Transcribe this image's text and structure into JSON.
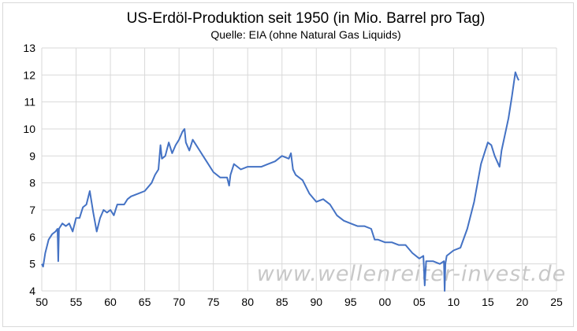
{
  "chart_data": {
    "type": "line",
    "title": "US-Erdöl-Produktion seit 1950 (in Mio. Barrel pro Tag)",
    "subtitle": "Quelle: EIA (ohne Natural Gas Liquids)",
    "watermark": "www.wellenreiter-invest.de",
    "xlabel": "",
    "ylabel": "",
    "xlim": [
      1950,
      2025
    ],
    "ylim": [
      4,
      13
    ],
    "grid": true,
    "x_ticks": [
      1950,
      1955,
      1960,
      1965,
      1970,
      1975,
      1980,
      1985,
      1990,
      1995,
      2000,
      2005,
      2010,
      2015,
      2020,
      2025
    ],
    "x_tick_labels": [
      "50",
      "55",
      "60",
      "65",
      "70",
      "75",
      "80",
      "85",
      "90",
      "95",
      "00",
      "05",
      "10",
      "15",
      "20",
      "25"
    ],
    "y_ticks": [
      4,
      5,
      6,
      7,
      8,
      9,
      10,
      11,
      12,
      13
    ],
    "y_tick_labels": [
      "4",
      "5",
      "6",
      "7",
      "8",
      "9",
      "10",
      "11",
      "12",
      "13"
    ],
    "series": [
      {
        "name": "US-Erdöl-Produktion",
        "color": "#4472c4",
        "x": [
          1950,
          1950.2,
          1950.5,
          1951,
          1951.5,
          1952,
          1952.3,
          1952.4,
          1952.5,
          1953,
          1953.5,
          1954,
          1954.5,
          1955,
          1955.5,
          1956,
          1956.5,
          1957,
          1957.5,
          1958,
          1958.5,
          1959,
          1959.5,
          1960,
          1960.5,
          1961,
          1962,
          1962.5,
          1963,
          1964,
          1965,
          1966,
          1966.5,
          1967,
          1967.3,
          1967.5,
          1968,
          1968.5,
          1969,
          1969.5,
          1970,
          1970.5,
          1970.8,
          1971,
          1971.5,
          1972,
          1972.5,
          1973,
          1974,
          1975,
          1976,
          1977,
          1977.3,
          1977.5,
          1978,
          1979,
          1980,
          1981,
          1982,
          1983,
          1984,
          1985,
          1986,
          1986.3,
          1986.6,
          1987,
          1988,
          1989,
          1990,
          1991,
          1992,
          1993,
          1994,
          1995,
          1996,
          1997,
          1998,
          1998.5,
          1999,
          2000,
          2001,
          2002,
          2003,
          2004,
          2005,
          2005.6,
          2005.8,
          2006,
          2007,
          2008,
          2008.6,
          2008.7,
          2008.8,
          2009,
          2010,
          2011,
          2012,
          2013,
          2014,
          2015,
          2015.5,
          2016,
          2016.7,
          2017,
          2018,
          2018.5,
          2019,
          2019.3,
          2019.5
        ],
        "values": [
          5.0,
          4.9,
          5.4,
          5.9,
          6.1,
          6.2,
          6.3,
          5.1,
          6.3,
          6.5,
          6.4,
          6.5,
          6.2,
          6.7,
          6.7,
          7.1,
          7.2,
          7.7,
          6.9,
          6.2,
          6.7,
          7.0,
          6.9,
          7.0,
          6.8,
          7.2,
          7.2,
          7.4,
          7.5,
          7.6,
          7.7,
          8.0,
          8.3,
          8.5,
          9.4,
          8.9,
          9.0,
          9.5,
          9.1,
          9.4,
          9.6,
          9.9,
          10.0,
          9.5,
          9.2,
          9.6,
          9.4,
          9.2,
          8.8,
          8.4,
          8.2,
          8.2,
          7.9,
          8.3,
          8.7,
          8.5,
          8.6,
          8.6,
          8.6,
          8.7,
          8.8,
          9.0,
          8.9,
          9.1,
          8.5,
          8.3,
          8.1,
          7.6,
          7.3,
          7.4,
          7.2,
          6.8,
          6.6,
          6.5,
          6.4,
          6.4,
          6.3,
          5.9,
          5.9,
          5.8,
          5.8,
          5.7,
          5.7,
          5.4,
          5.2,
          5.3,
          4.2,
          5.1,
          5.1,
          5.0,
          5.1,
          4.0,
          5.0,
          5.3,
          5.5,
          5.6,
          6.3,
          7.3,
          8.7,
          9.5,
          9.4,
          9.0,
          8.6,
          9.2,
          10.4,
          11.2,
          12.1,
          11.9,
          11.8
        ]
      }
    ]
  }
}
